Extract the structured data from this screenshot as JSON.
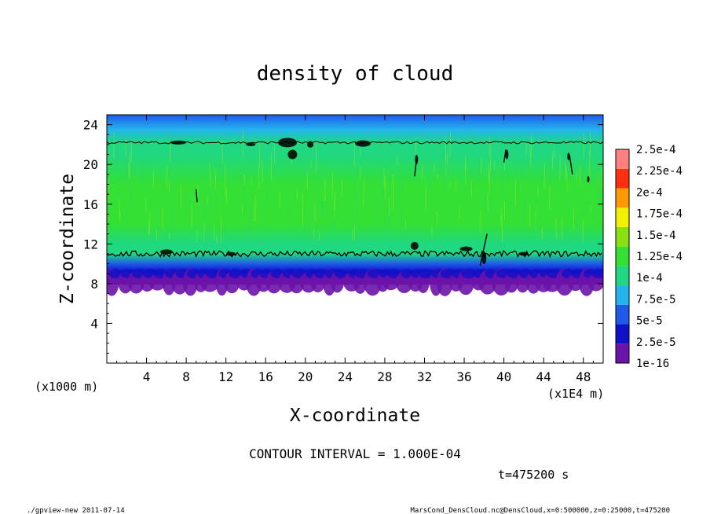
{
  "chart_data": {
    "type": "heatmap",
    "title": "density of cloud",
    "xlabel": "X-coordinate",
    "ylabel": "Z-coordinate",
    "x_unit_label": "(x1E4 m)",
    "y_unit_label": "(x1000 m)",
    "xlim": [
      0,
      50
    ],
    "ylim": [
      0,
      25
    ],
    "x_ticks": [
      "4",
      "8",
      "12",
      "16",
      "20",
      "24",
      "28",
      "32",
      "36",
      "40",
      "44",
      "48"
    ],
    "y_ticks": [
      "4",
      "8",
      "12",
      "16",
      "20",
      "24"
    ],
    "contour_interval": "CONTOUR INTERVAL = 1.000E-04",
    "time_label": "t=475200 s",
    "contour_level": 0.0001,
    "colorbar": {
      "labels": [
        "1e-16",
        "2.5e-5",
        "5e-5",
        "7.5e-5",
        "1e-4",
        "1.25e-4",
        "1.5e-4",
        "1.75e-4",
        "2e-4",
        "2.25e-4",
        "2.5e-4"
      ],
      "colors": [
        "#6a13a8",
        "#1010c8",
        "#1f5ae8",
        "#23b4ee",
        "#1fd880",
        "#33e033",
        "#8be010",
        "#f0f000",
        "#ff9900",
        "#ff3010",
        "#ff8080"
      ]
    },
    "vertical_profile": [
      {
        "z": 7.9,
        "value": 1e-06
      },
      {
        "z": 8.6,
        "value": 2e-05
      },
      {
        "z": 9.2,
        "value": 4e-05
      },
      {
        "z": 10.0,
        "value": 6.5e-05
      },
      {
        "z": 11.0,
        "value": 0.0001
      },
      {
        "z": 12.0,
        "value": 0.00012
      },
      {
        "z": 14.0,
        "value": 0.00013
      },
      {
        "z": 18.0,
        "value": 0.000135
      },
      {
        "z": 21.0,
        "value": 0.000115
      },
      {
        "z": 22.2,
        "value": 0.0001
      },
      {
        "z": 23.5,
        "value": 8e-05
      },
      {
        "z": 25.0,
        "value": 7e-05
      }
    ],
    "lower_contour_z": 11.0,
    "upper_contour_z": 22.2,
    "cloud_base_z": 7.9
  },
  "footer": {
    "left": "./gpview-new  2011-07-14",
    "right": "MarsCond_DensCloud.nc@DensCloud,x=0:500000,z=0:25000,t=475200"
  }
}
